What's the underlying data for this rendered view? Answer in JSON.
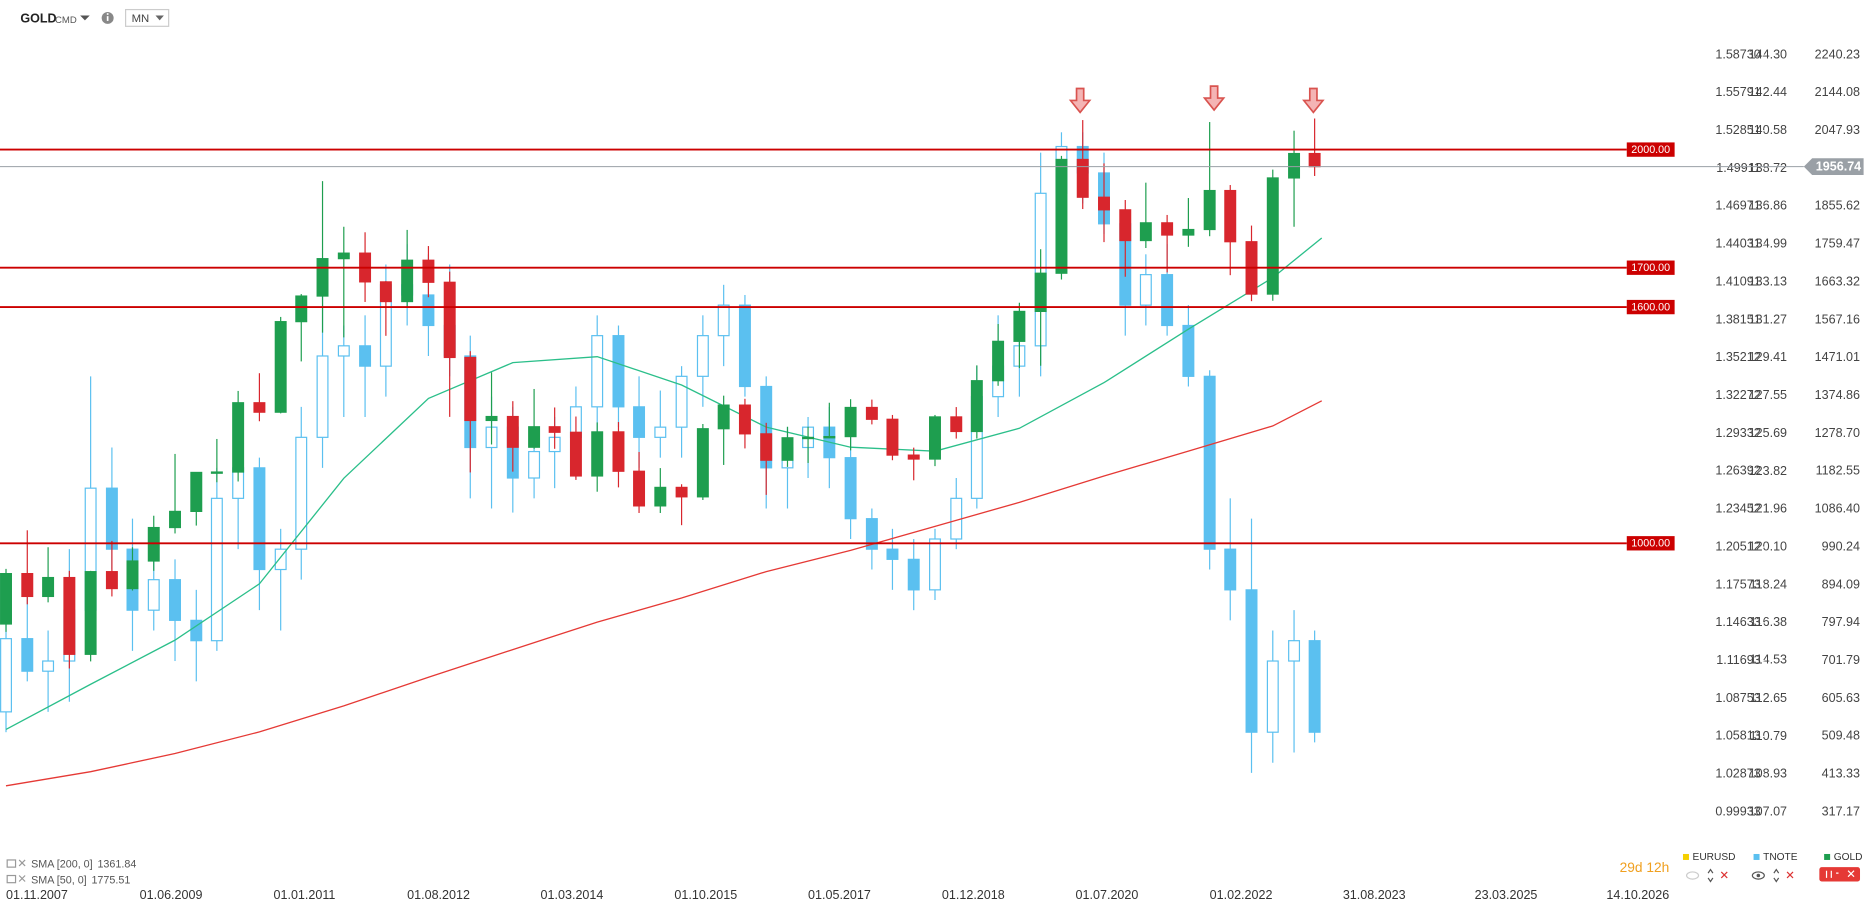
{
  "chart_data": {
    "type": "candlestick",
    "title": "GOLD",
    "subtitle": "CMD",
    "timeframe": "MN",
    "countdown": "29d 12h",
    "xlim": [
      "06.10.2007",
      "05.08.2027"
    ],
    "xticks": [
      "01.11.2007",
      "01.06.2009",
      "01.01.2011",
      "01.08.2012",
      "01.03.2014",
      "01.10.2015",
      "01.05.2017",
      "01.12.2018",
      "01.07.2020",
      "01.02.2022",
      "31.08.2023",
      "23.03.2025",
      "14.10.2026"
    ],
    "ylim": [
      317.17,
      2240.23
    ],
    "yticks": [
      2240.23,
      2144.08,
      2047.93,
      1855.62,
      1759.47,
      1663.32,
      1567.16,
      1471.01,
      1374.86,
      {
        "value": 1278.7,
        "label": "1278.70"
      },
      1182.55,
      {
        "value": 1086.4,
        "label": "1086.40"
      },
      990.24,
      894.09,
      797.94,
      701.79,
      605.63,
      509.48,
      413.33,
      317.17
    ],
    "y2lim": [
      107.07,
      144.3
    ],
    "y2ticks": [
      {
        "value": 144.3,
        "label": "144.30"
      },
      142.44,
      140.58,
      138.72,
      136.86,
      134.99,
      133.13,
      131.27,
      129.41,
      127.55,
      125.69,
      123.82,
      121.96,
      {
        "value": 120.1,
        "label": "120.10"
      },
      118.24,
      116.38,
      114.53,
      112.65,
      110.79,
      108.93,
      107.07
    ],
    "y3lim": [
      0.99933,
      1.5873
    ],
    "y3ticks": [
      {
        "value": 1.5873,
        "label": "1.58730"
      },
      1.55791,
      1.52851,
      1.49911,
      1.46971,
      1.44031,
      1.41091,
      1.38151,
      1.35212,
      1.32272,
      1.29332,
      1.26392,
      1.23452,
      1.20512,
      1.17573,
      1.14633,
      1.11693,
      1.08753,
      1.05813,
      1.02873,
      0.99933
    ],
    "x": [
      "01.11.2007",
      "01.02.2008",
      "01.05.2008",
      "01.08.2008",
      "01.11.2008",
      "01.02.2009",
      "01.05.2009",
      "01.08.2009",
      "01.11.2009",
      "01.02.2010",
      "01.05.2010",
      "01.08.2010",
      "01.11.2010",
      "01.02.2011",
      "01.05.2011",
      "01.08.2011",
      "01.11.2011",
      "01.02.2012",
      "01.05.2012",
      "01.08.2012",
      "01.11.2012",
      "01.02.2013",
      "01.05.2013",
      "01.08.2013",
      "01.11.2013",
      "01.02.2014",
      "01.05.2014",
      "01.08.2014",
      "01.11.2014",
      "01.02.2015",
      "01.05.2015",
      "01.08.2015",
      "01.11.2015",
      "01.02.2016",
      "01.05.2016",
      "01.08.2016",
      "01.11.2016",
      "01.02.2017",
      "01.05.2017",
      "01.08.2017",
      "01.11.2017",
      "01.02.2018",
      "01.05.2018",
      "01.08.2018",
      "01.11.2018",
      "01.02.2019",
      "01.05.2019",
      "01.08.2019",
      "01.11.2019",
      "01.02.2020",
      "01.05.2020",
      "01.08.2020",
      "01.11.2020",
      "01.02.2021",
      "01.05.2021",
      "01.08.2021",
      "01.11.2021",
      "01.02.2022",
      "01.05.2022",
      "01.08.2022",
      "01.11.2022",
      "01.02.2023",
      "01.05.2023"
    ],
    "series": [
      {
        "name": "GOLD",
        "color": "#1e9e4f",
        "down_color": "#d8262d",
        "axis": "y",
        "open": [
          795,
          923,
          865,
          913,
          718,
          928,
          885,
          955,
          1040,
          1081,
          1180,
          1181,
          1357,
          1333,
          1563,
          1628,
          1723,
          1737,
          1664,
          1614,
          1719,
          1663,
          1472,
          1312,
          1322,
          1244,
          1296,
          1282,
          1171,
          1283,
          1183,
          1095,
          1142,
          1118,
          1291,
          1351,
          1278,
          1211,
          1268,
          1269,
          1271,
          1345,
          1315,
          1224,
          1214,
          1321,
          1284,
          1413,
          1513,
          1589,
          1686,
          1975,
          1879,
          1847,
          1769,
          1814,
          1783,
          1797,
          1896,
          1766,
          1633,
          1928,
          1990
        ],
        "high": [
          935,
          1033,
          990,
          930,
          930,
          1006,
          990,
          1070,
          1227,
          1180,
          1265,
          1387,
          1432,
          1575,
          1633,
          1920,
          1804,
          1790,
          1666,
          1796,
          1755,
          1690,
          1488,
          1434,
          1361,
          1392,
          1345,
          1322,
          1307,
          1308,
          1232,
          1191,
          1150,
          1303,
          1375,
          1367,
          1306,
          1296,
          1296,
          1357,
          1366,
          1365,
          1326,
          1243,
          1326,
          1346,
          1452,
          1557,
          1611,
          1747,
          1984,
          2075,
          1965,
          1872,
          1916,
          1834,
          1877,
          2070,
          1910,
          1807,
          1949,
          2048,
          2079
        ],
        "low": [
          775,
          845,
          850,
          682,
          700,
          865,
          880,
          930,
          1025,
          1045,
          1155,
          1157,
          1310,
          1330,
          1462,
          1535,
          1523,
          1613,
          1527,
          1600,
          1625,
          1321,
          1180,
          1251,
          1182,
          1240,
          1240,
          1161,
          1131,
          1142,
          1077,
          1077,
          1046,
          1110,
          1199,
          1241,
          1123,
          1194,
          1204,
          1267,
          1236,
          1302,
          1211,
          1160,
          1196,
          1266,
          1266,
          1400,
          1445,
          1451,
          1670,
          1849,
          1765,
          1677,
          1750,
          1688,
          1753,
          1780,
          1681,
          1615,
          1616,
          1804,
          1933
        ],
        "close": [
          923,
          865,
          913,
          718,
          928,
          885,
          955,
          1040,
          1081,
          1180,
          1181,
          1357,
          1333,
          1563,
          1628,
          1723,
          1737,
          1664,
          1614,
          1719,
          1663,
          1472,
          1312,
          1322,
          1244,
          1296,
          1282,
          1171,
          1283,
          1183,
          1095,
          1142,
          1118,
          1291,
          1351,
          1278,
          1211,
          1268,
          1269,
          1271,
          1345,
          1315,
          1224,
          1214,
          1321,
          1284,
          1413,
          1513,
          1589,
          1686,
          1975,
          1879,
          1847,
          1769,
          1814,
          1783,
          1797,
          1896,
          1766,
          1633,
          1928,
          1990,
          1956.74
        ]
      },
      {
        "name": "TNOTE",
        "color": "#5bc0f0",
        "axis": "y2",
        "open": [
          112.0,
          115.6,
          114.0,
          114.5,
          117.0,
          123.0,
          120.0,
          117.0,
          118.5,
          116.5,
          115.5,
          122.5,
          124.0,
          119.0,
          120.0,
          125.5,
          129.5,
          130.0,
          129.0,
          133.0,
          132.5,
          131.0,
          129.5,
          125.0,
          126.0,
          123.5,
          124.8,
          125.5,
          127.0,
          130.5,
          127.0,
          125.5,
          126.0,
          128.5,
          130.5,
          132.0,
          128.0,
          124.0,
          125.0,
          126.0,
          124.5,
          121.5,
          120.0,
          119.5,
          118.0,
          120.5,
          122.5,
          127.5,
          129.0,
          130.0,
          137.5,
          139.8,
          138.5,
          136.0,
          132.0,
          133.5,
          131.0,
          128.5,
          120.0,
          118.0,
          111.0,
          114.5,
          115.5
        ],
        "high": [
          116.5,
          118.0,
          116.0,
          120.0,
          128.5,
          125.0,
          121.5,
          120.5,
          119.5,
          118.0,
          124.0,
          126.5,
          124.5,
          121.0,
          127.0,
          132.5,
          131.0,
          131.5,
          134.0,
          135.0,
          134.5,
          134.0,
          130.5,
          127.5,
          127.0,
          125.5,
          126.5,
          128.0,
          131.5,
          131.0,
          128.5,
          127.8,
          129.0,
          131.5,
          133.0,
          132.5,
          128.5,
          126.0,
          126.5,
          127.0,
          125.5,
          122.0,
          121.0,
          120.5,
          121.0,
          123.5,
          129.0,
          131.5,
          130.5,
          139.5,
          140.5,
          140.5,
          139.5,
          136.5,
          134.5,
          135.0,
          132.0,
          128.8,
          122.5,
          121.5,
          116.0,
          117.0,
          116.0
        ],
        "low": [
          111.0,
          113.5,
          112.0,
          112.5,
          116.0,
          119.0,
          115.0,
          116.0,
          114.5,
          113.5,
          115.0,
          120.0,
          117.0,
          116.0,
          118.5,
          124.0,
          126.5,
          126.5,
          127.5,
          131.0,
          129.5,
          128.5,
          122.5,
          122.0,
          121.8,
          122.5,
          123.0,
          123.5,
          125.0,
          126.0,
          124.0,
          124.5,
          124.5,
          127.0,
          129.0,
          127.5,
          122.0,
          122.0,
          123.5,
          123.0,
          120.5,
          119.0,
          118.0,
          117.0,
          117.5,
          120.0,
          122.0,
          126.5,
          127.5,
          128.5,
          136.5,
          137.0,
          135.5,
          130.5,
          131.0,
          130.5,
          128.0,
          119.0,
          116.5,
          109.0,
          109.5,
          110.0,
          110.5
        ],
        "close": [
          115.6,
          114.0,
          114.5,
          117.0,
          123.0,
          120.0,
          117.0,
          118.5,
          116.5,
          115.5,
          122.5,
          124.0,
          119.0,
          120.0,
          125.5,
          129.5,
          130.0,
          129.0,
          133.0,
          132.5,
          131.0,
          129.5,
          125.0,
          126.0,
          123.5,
          124.8,
          125.5,
          127.0,
          130.5,
          127.0,
          125.5,
          126.0,
          128.5,
          130.5,
          132.0,
          128.0,
          124.0,
          125.0,
          126.0,
          124.5,
          121.5,
          120.0,
          119.5,
          118.0,
          120.5,
          122.5,
          127.5,
          129.0,
          130.0,
          137.5,
          139.8,
          138.5,
          136.0,
          132.0,
          133.5,
          131.0,
          128.5,
          120.0,
          118.0,
          111.0,
          114.5,
          115.5,
          111.0
        ]
      },
      {
        "name": "EURUSD",
        "color": "#f5d000",
        "axis": "y3"
      }
    ],
    "indicators": [
      {
        "name": "SMA [200, 0]",
        "color": "#e53935",
        "axis": "y",
        "x": [
          "01.11.2007",
          "01.11.2008",
          "01.11.2009",
          "01.11.2010",
          "01.11.2011",
          "01.11.2012",
          "01.11.2013",
          "01.11.2014",
          "01.11.2015",
          "01.11.2016",
          "01.11.2017",
          "01.11.2018",
          "01.11.2019",
          "01.11.2020",
          "01.11.2021",
          "01.11.2022",
          "01.06.2023"
        ],
        "values": [
          384,
          420,
          466,
          521,
          587,
          660,
          730,
          800,
          861,
          928,
          982,
          1043,
          1104,
          1171,
          1234,
          1298,
          1361.84
        ]
      },
      {
        "name": "SMA [50, 0]",
        "color": "#2bbf8a",
        "axis": "y",
        "x": [
          "01.11.2007",
          "01.11.2008",
          "01.11.2009",
          "01.11.2010",
          "01.11.2011",
          "01.11.2012",
          "01.11.2013",
          "01.11.2014",
          "01.11.2015",
          "01.11.2016",
          "01.11.2017",
          "01.11.2018",
          "01.11.2019",
          "01.11.2020",
          "01.11.2021",
          "01.11.2022",
          "01.06.2023"
        ],
        "values": [
          527,
          642,
          754,
          897,
          1165,
          1368,
          1459,
          1474,
          1402,
          1295,
          1244,
          1234,
          1292,
          1408,
          1544,
          1675,
          1775.51
        ]
      }
    ],
    "levels": [
      {
        "value": 2000,
        "label": "2000.00"
      },
      {
        "value": 1700,
        "label": "1700.00"
      },
      {
        "value": 1600,
        "label": "1600.00"
      },
      {
        "value": 1000,
        "label": "1000.00"
      }
    ],
    "level_color": "#cc0000",
    "last_price_color": "#9aa0a6"
  }
}
